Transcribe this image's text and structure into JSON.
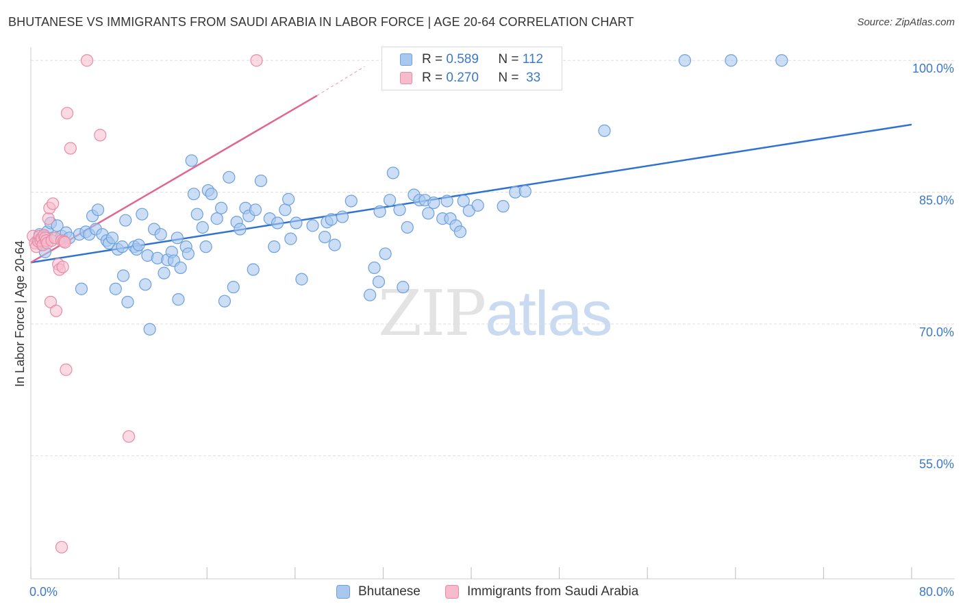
{
  "header": {
    "title": "BHUTANESE VS IMMIGRANTS FROM SAUDI ARABIA IN LABOR FORCE | AGE 20-64 CORRELATION CHART",
    "source": "Source: ZipAtlas.com"
  },
  "watermark": {
    "zip": "ZIP",
    "atlas": "atlas"
  },
  "colors": {
    "blue_fill": "#a9c8f0",
    "blue_stroke": "#6c9fdc",
    "blue_line": "#2e72d2",
    "pink_fill": "#f7bccc",
    "pink_stroke": "#e88aa6",
    "pink_line": "#e06690",
    "grid": "#dddddd",
    "axis_text": "#3a78c9"
  },
  "legend": {
    "r_label": "R =",
    "n_label": "N =",
    "rows": [
      {
        "series": "Bhutanese",
        "r": "0.589",
        "n": "112"
      },
      {
        "series": "Immigrants from Saudi Arabia",
        "r": "0.270",
        "n": "33"
      }
    ]
  },
  "chart_data": {
    "type": "scatter",
    "title": "BHUTANESE VS IMMIGRANTS FROM SAUDI ARABIA IN LABOR FORCE | AGE 20-64 CORRELATION CHART",
    "xlabel": "",
    "ylabel": "In Labor Force | Age 20-64",
    "xlim": [
      0,
      80
    ],
    "ylim": [
      41,
      101.5
    ],
    "x_tick_labels": [
      "0.0%",
      "80.0%"
    ],
    "y_ticks": [
      55,
      70,
      85,
      100
    ],
    "y_tick_labels": [
      "55.0%",
      "70.0%",
      "85.0%",
      "100.0%"
    ],
    "legend_position": "top-center",
    "series": [
      {
        "name": "Bhutanese",
        "r": 0.589,
        "n": 112,
        "trend": {
          "x": [
            0,
            80
          ],
          "y": [
            77.0,
            92.7
          ]
        },
        "points": [
          [
            0.6,
            79.5
          ],
          [
            0.8,
            80.2
          ],
          [
            1.0,
            79.0
          ],
          [
            1.2,
            80.0
          ],
          [
            1.5,
            80.5
          ],
          [
            1.8,
            81.5
          ],
          [
            2.0,
            79.8
          ],
          [
            2.4,
            81.2
          ],
          [
            2.8,
            80.0
          ],
          [
            3.2,
            80.4
          ],
          [
            3.5,
            79.8
          ],
          [
            4.4,
            80.2
          ],
          [
            4.6,
            74.0
          ],
          [
            5.0,
            80.5
          ],
          [
            5.3,
            80.2
          ],
          [
            5.6,
            82.3
          ],
          [
            5.9,
            80.8
          ],
          [
            6.1,
            83.0
          ],
          [
            6.5,
            80.2
          ],
          [
            6.9,
            79.5
          ],
          [
            7.1,
            79.2
          ],
          [
            7.4,
            79.8
          ],
          [
            7.7,
            74.0
          ],
          [
            7.9,
            78.5
          ],
          [
            8.3,
            78.8
          ],
          [
            8.4,
            75.5
          ],
          [
            8.6,
            81.8
          ],
          [
            8.8,
            72.5
          ],
          [
            9.4,
            78.8
          ],
          [
            9.6,
            78.5
          ],
          [
            9.8,
            79.0
          ],
          [
            10.1,
            82.5
          ],
          [
            10.4,
            74.5
          ],
          [
            10.6,
            77.8
          ],
          [
            10.8,
            69.4
          ],
          [
            11.2,
            80.8
          ],
          [
            11.5,
            77.5
          ],
          [
            11.8,
            80.2
          ],
          [
            12.1,
            75.8
          ],
          [
            12.4,
            77.3
          ],
          [
            12.8,
            78.2
          ],
          [
            13.0,
            77.2
          ],
          [
            13.3,
            79.8
          ],
          [
            13.4,
            72.8
          ],
          [
            13.6,
            76.4
          ],
          [
            14.1,
            78.8
          ],
          [
            14.3,
            78.0
          ],
          [
            14.6,
            88.6
          ],
          [
            14.8,
            84.8
          ],
          [
            15.1,
            82.5
          ],
          [
            15.6,
            81.0
          ],
          [
            15.9,
            78.8
          ],
          [
            16.1,
            85.2
          ],
          [
            16.4,
            84.8
          ],
          [
            16.9,
            82.0
          ],
          [
            17.3,
            83.2
          ],
          [
            17.6,
            72.6
          ],
          [
            18.0,
            86.7
          ],
          [
            18.4,
            74.2
          ],
          [
            18.7,
            81.6
          ],
          [
            19.0,
            80.8
          ],
          [
            19.5,
            83.2
          ],
          [
            19.8,
            82.3
          ],
          [
            20.2,
            76.2
          ],
          [
            20.4,
            83.0
          ],
          [
            20.9,
            86.3
          ],
          [
            21.7,
            82.0
          ],
          [
            22.1,
            78.8
          ],
          [
            22.4,
            81.5
          ],
          [
            23.1,
            83.0
          ],
          [
            23.4,
            84.2
          ],
          [
            23.6,
            79.7
          ],
          [
            24.1,
            81.5
          ],
          [
            24.6,
            75.1
          ],
          [
            25.6,
            81.2
          ],
          [
            26.7,
            79.9
          ],
          [
            26.9,
            81.6
          ],
          [
            27.3,
            81.9
          ],
          [
            27.6,
            79.0
          ],
          [
            28.3,
            82.2
          ],
          [
            29.1,
            84.0
          ],
          [
            30.8,
            73.3
          ],
          [
            31.2,
            76.4
          ],
          [
            31.6,
            74.8
          ],
          [
            31.7,
            82.8
          ],
          [
            32.2,
            78.0
          ],
          [
            32.6,
            84.1
          ],
          [
            32.9,
            87.2
          ],
          [
            33.5,
            83.0
          ],
          [
            33.8,
            74.2
          ],
          [
            34.2,
            81.0
          ],
          [
            34.8,
            84.7
          ],
          [
            35.3,
            84.1
          ],
          [
            35.8,
            84.1
          ],
          [
            36.1,
            82.6
          ],
          [
            36.6,
            83.8
          ],
          [
            37.4,
            82.0
          ],
          [
            37.8,
            84.0
          ],
          [
            38.1,
            82.0
          ],
          [
            38.6,
            81.2
          ],
          [
            39.0,
            80.5
          ],
          [
            39.3,
            84.0
          ],
          [
            39.8,
            82.9
          ],
          [
            40.6,
            83.5
          ],
          [
            42.9,
            83.4
          ],
          [
            44.0,
            85.0
          ],
          [
            44.9,
            85.1
          ],
          [
            52.1,
            92.0
          ],
          [
            59.4,
            100.0
          ],
          [
            63.6,
            100.0
          ],
          [
            68.2,
            100.0
          ],
          [
            1.3,
            78.2
          ]
        ]
      },
      {
        "name": "Immigrants from Saudi Arabia",
        "r": 0.27,
        "n": 33,
        "trend": {
          "x": [
            0,
            26
          ],
          "y": [
            77.0,
            96.0
          ]
        },
        "trend_extension": {
          "x": [
            26,
            30.3
          ],
          "y": [
            96.0,
            99.3
          ]
        },
        "points": [
          [
            0.2,
            80.0
          ],
          [
            0.4,
            79.2
          ],
          [
            0.5,
            78.8
          ],
          [
            0.7,
            79.4
          ],
          [
            0.8,
            80.0
          ],
          [
            0.9,
            79.5
          ],
          [
            1.0,
            79.8
          ],
          [
            1.1,
            79.0
          ],
          [
            1.2,
            80.1
          ],
          [
            1.3,
            79.8
          ],
          [
            1.4,
            79.5
          ],
          [
            1.5,
            79.2
          ],
          [
            1.6,
            82.0
          ],
          [
            1.7,
            83.2
          ],
          [
            1.8,
            72.5
          ],
          [
            1.9,
            79.5
          ],
          [
            2.0,
            83.7
          ],
          [
            2.2,
            79.8
          ],
          [
            2.3,
            71.5
          ],
          [
            2.5,
            76.8
          ],
          [
            2.6,
            76.2
          ],
          [
            2.8,
            79.5
          ],
          [
            2.9,
            76.5
          ],
          [
            3.0,
            79.4
          ],
          [
            3.1,
            79.3
          ],
          [
            3.2,
            64.8
          ],
          [
            3.3,
            94.0
          ],
          [
            3.6,
            90.0
          ],
          [
            5.1,
            100.0
          ],
          [
            6.3,
            91.5
          ],
          [
            8.9,
            57.2
          ],
          [
            20.5,
            100.0
          ],
          [
            2.8,
            44.6
          ]
        ]
      }
    ]
  }
}
